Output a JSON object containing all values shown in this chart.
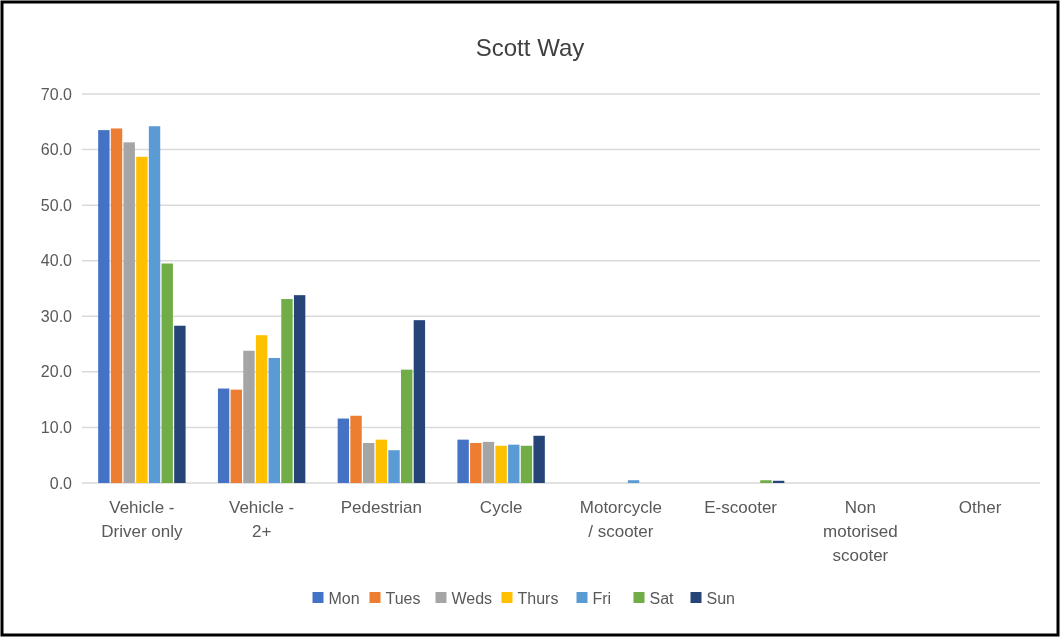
{
  "chart_data": {
    "type": "bar",
    "title": "Scott Way",
    "categories": [
      "Vehicle - Driver only",
      "Vehicle - 2+",
      "Pedestrian",
      "Cycle",
      "Motorcycle / scooter",
      "E-scooter",
      "Non motorised scooter",
      "Other"
    ],
    "series": [
      {
        "name": "Mon",
        "color": "#4472c4",
        "values": [
          63.5,
          17.0,
          11.6,
          7.8,
          0,
          0,
          0,
          0
        ]
      },
      {
        "name": "Tues",
        "color": "#ed7d31",
        "values": [
          63.8,
          16.8,
          12.1,
          7.2,
          0,
          0,
          0,
          0
        ]
      },
      {
        "name": "Weds",
        "color": "#a5a5a5",
        "values": [
          61.3,
          23.8,
          7.2,
          7.4,
          0,
          0,
          0,
          0
        ]
      },
      {
        "name": "Thurs",
        "color": "#ffc000",
        "values": [
          58.7,
          26.6,
          7.8,
          6.7,
          0,
          0,
          0,
          0
        ]
      },
      {
        "name": "Fri",
        "color": "#5b9bd5",
        "values": [
          64.2,
          22.5,
          5.9,
          6.9,
          0.5,
          0,
          0,
          0
        ]
      },
      {
        "name": "Sat",
        "color": "#70ad47",
        "values": [
          39.5,
          33.1,
          20.4,
          6.7,
          0,
          0.5,
          0,
          0
        ]
      },
      {
        "name": "Sun",
        "color": "#264478",
        "values": [
          28.3,
          33.8,
          29.3,
          8.5,
          0,
          0.4,
          0,
          0
        ]
      }
    ],
    "ylim": [
      0,
      70
    ],
    "yticks": [
      {
        "value": 0,
        "label": "0.0"
      },
      {
        "value": 10,
        "label": "10.0"
      },
      {
        "value": 20,
        "label": "20.0"
      },
      {
        "value": 30,
        "label": "30.0"
      },
      {
        "value": 40,
        "label": "40.0"
      },
      {
        "value": 50,
        "label": "50.0"
      },
      {
        "value": 60,
        "label": "60.0"
      },
      {
        "value": 70,
        "label": "70.0"
      }
    ],
    "grid": "y",
    "legend": "bottom"
  }
}
